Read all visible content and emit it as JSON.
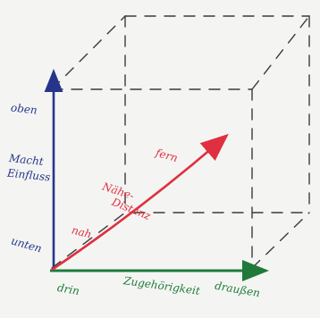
{
  "labels": {
    "y_top": "oben",
    "y_middle_line1": "Macht",
    "y_middle_line2": "Einfluss",
    "y_bottom": "unten",
    "x_left": "drin",
    "x_middle": "Zugehörigkeit",
    "x_right": "draußen",
    "arrow_near": "nah",
    "arrow_middle_line1": "Nähe-",
    "arrow_middle_line2": "Distanz",
    "arrow_far": "fern"
  },
  "colors": {
    "vertical_axis": "#26358a",
    "horizontal_axis": "#1f7a3a",
    "diagonal_arrow": "#e0303f",
    "dashed_cube_lines": "#3a3a3a",
    "background": "#f4f5f3"
  }
}
